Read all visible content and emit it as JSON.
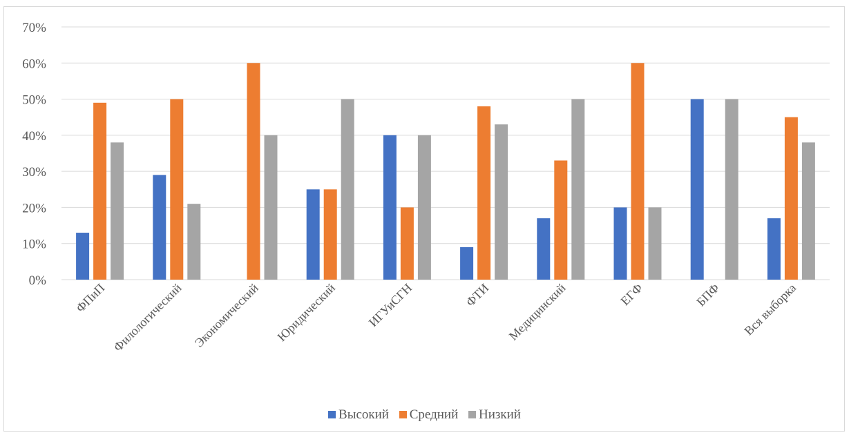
{
  "chart_data": {
    "type": "bar",
    "title": "",
    "xlabel": "",
    "ylabel": "",
    "categories": [
      "ФПиП",
      "Филологический",
      "Экономический",
      "Юридический",
      "ИГУиСГН",
      "ФТИ",
      "Медицинский",
      "ЕГФ",
      "БПФ",
      "Вся выборка"
    ],
    "series": [
      {
        "name": "Высокий",
        "color": "#4472c4",
        "values": [
          13,
          29,
          0,
          25,
          40,
          9,
          17,
          20,
          50,
          17
        ]
      },
      {
        "name": "Средний",
        "color": "#ed7d31",
        "values": [
          49,
          50,
          60,
          25,
          20,
          48,
          33,
          60,
          0,
          45
        ]
      },
      {
        "name": "Низкий",
        "color": "#a5a5a5",
        "values": [
          38,
          21,
          40,
          50,
          40,
          43,
          50,
          20,
          50,
          38
        ]
      }
    ],
    "ylim": [
      0,
      70
    ],
    "yticks": [
      "0%",
      "10%",
      "20%",
      "30%",
      "40%",
      "50%",
      "60%",
      "70%"
    ],
    "grid": true,
    "legend_position": "bottom"
  }
}
